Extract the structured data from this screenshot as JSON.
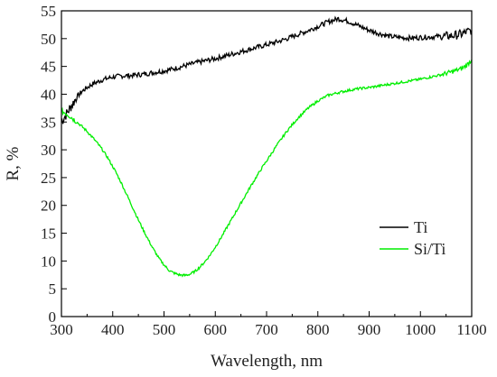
{
  "chart_data": {
    "type": "line",
    "title": "",
    "xlabel": "Wavelength, nm",
    "ylabel": "R, %",
    "xlim": [
      300,
      1100
    ],
    "ylim": [
      0,
      55
    ],
    "xticks": [
      300,
      400,
      500,
      600,
      700,
      800,
      900,
      1000,
      1100
    ],
    "yticks": [
      0,
      5,
      10,
      15,
      20,
      25,
      30,
      35,
      40,
      45,
      50,
      55
    ],
    "grid": false,
    "legend_position": "center-right",
    "series": [
      {
        "name": "Ti",
        "color": "#000000",
        "x": [
          300,
          310,
          320,
          330,
          340,
          350,
          360,
          370,
          380,
          400,
          420,
          440,
          460,
          480,
          500,
          520,
          540,
          560,
          580,
          600,
          620,
          640,
          660,
          680,
          700,
          720,
          740,
          760,
          780,
          800,
          820,
          840,
          860,
          880,
          900,
          920,
          940,
          960,
          980,
          1000,
          1020,
          1040,
          1060,
          1080,
          1090,
          1100
        ],
        "y": [
          35,
          36.5,
          38,
          39.5,
          40.5,
          41.2,
          41.8,
          42.2,
          42.6,
          43.1,
          43.3,
          43.4,
          43.6,
          43.9,
          44.2,
          44.6,
          45.1,
          45.6,
          46.0,
          46.4,
          46.9,
          47.4,
          47.9,
          48.4,
          48.9,
          49.4,
          50.0,
          50.7,
          51.4,
          52.2,
          53.0,
          53.6,
          53.1,
          52.3,
          51.5,
          50.9,
          50.4,
          50.2,
          50.1,
          50.2,
          50.3,
          50.4,
          50.5,
          50.8,
          51.2,
          51.5
        ]
      },
      {
        "name": "Si/Ti",
        "color": "#00ee00",
        "x": [
          300,
          310,
          320,
          330,
          340,
          350,
          360,
          370,
          380,
          390,
          400,
          410,
          420,
          430,
          440,
          450,
          460,
          470,
          480,
          490,
          500,
          510,
          520,
          530,
          540,
          550,
          560,
          570,
          580,
          590,
          600,
          610,
          620,
          630,
          640,
          650,
          660,
          670,
          680,
          690,
          700,
          720,
          740,
          760,
          780,
          800,
          820,
          840,
          860,
          880,
          900,
          920,
          940,
          960,
          980,
          1000,
          1020,
          1040,
          1060,
          1080,
          1090,
          1100
        ],
        "y": [
          37,
          36.5,
          35.8,
          35.0,
          34.2,
          33.3,
          32.3,
          31.2,
          30.0,
          28.6,
          27.0,
          25.3,
          23.4,
          21.4,
          19.4,
          17.4,
          15.5,
          13.7,
          12.0,
          10.5,
          9.3,
          8.3,
          7.8,
          7.5,
          7.4,
          7.6,
          8.1,
          8.9,
          9.9,
          11.1,
          12.5,
          14.0,
          15.6,
          17.2,
          18.8,
          20.4,
          22.0,
          23.6,
          25.1,
          26.6,
          28.0,
          30.8,
          33.4,
          35.6,
          37.4,
          38.8,
          39.8,
          40.3,
          40.7,
          41.0,
          41.2,
          41.5,
          41.8,
          42.1,
          42.4,
          42.7,
          43.1,
          43.5,
          44.0,
          44.6,
          45.2,
          46.2
        ]
      }
    ]
  }
}
